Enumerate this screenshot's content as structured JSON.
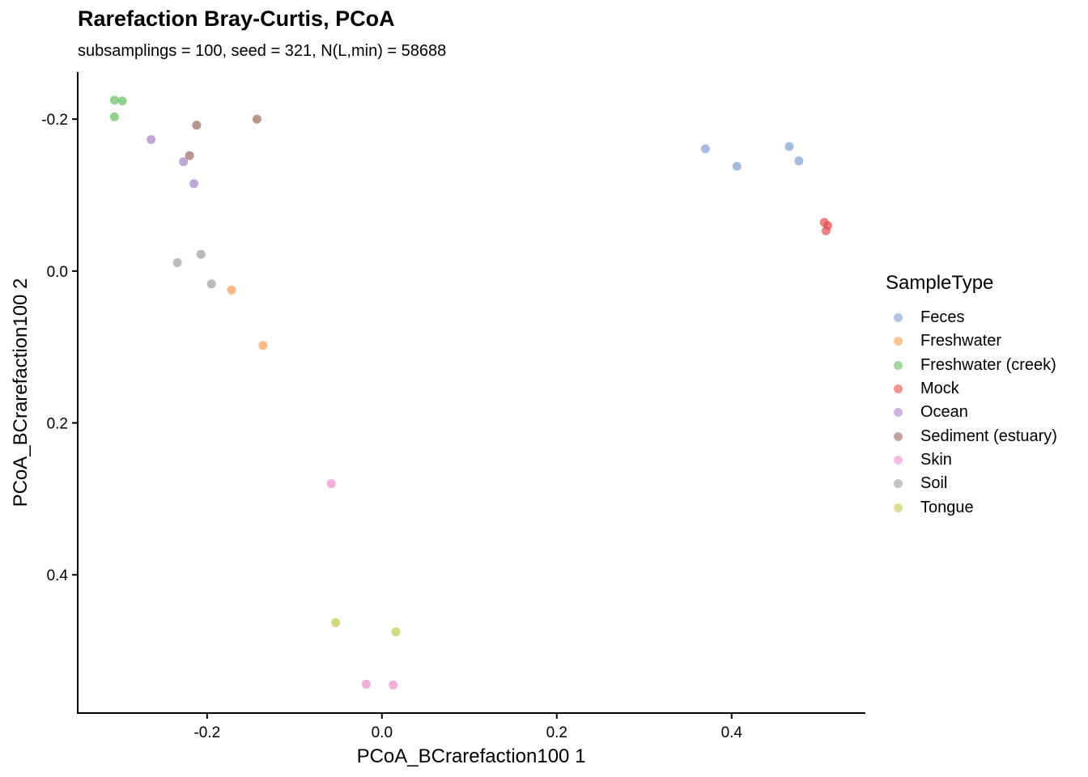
{
  "chart_data": {
    "type": "scatter",
    "title": "Rarefaction Bray-Curtis, PCoA",
    "subtitle": "subsamplings = 100, seed = 321, N(L,min) = 58688",
    "xlabel": "PCoA_BCrarefaction100 1",
    "ylabel": "PCoA_BCrarefaction100 2",
    "xlim": [
      -0.348,
      0.553
    ],
    "ylim": [
      -0.262,
      0.582
    ],
    "y_reversed": true,
    "xticks": [
      -0.2,
      0.0,
      0.2,
      0.4
    ],
    "xtick_labels": [
      "-0.2",
      "0.0",
      "0.2",
      "0.4"
    ],
    "yticks": [
      -0.2,
      0.0,
      0.2,
      0.4
    ],
    "ytick_labels": [
      "-0.2",
      "0.0",
      "0.2",
      "0.4"
    ],
    "grid": false,
    "legend_title": "SampleType",
    "legend_position": "right",
    "series": [
      {
        "name": "Feces",
        "color": "#7F9FD0",
        "points": [
          [
            0.37,
            -0.161
          ],
          [
            0.406,
            -0.138
          ],
          [
            0.466,
            -0.164
          ],
          [
            0.477,
            -0.145
          ]
        ]
      },
      {
        "name": "Freshwater",
        "color": "#F99D52",
        "points": [
          [
            -0.172,
            0.025
          ],
          [
            -0.136,
            0.098
          ]
        ]
      },
      {
        "name": "Freshwater (creek)",
        "color": "#68BE5E",
        "points": [
          [
            -0.306,
            -0.225
          ],
          [
            -0.297,
            -0.224
          ],
          [
            -0.306,
            -0.203
          ]
        ]
      },
      {
        "name": "Mock",
        "color": "#E34F4D",
        "points": [
          [
            0.506,
            -0.064
          ],
          [
            0.51,
            -0.06
          ],
          [
            0.508,
            -0.053
          ]
        ]
      },
      {
        "name": "Ocean",
        "color": "#A681C6",
        "points": [
          [
            -0.264,
            -0.173
          ],
          [
            -0.227,
            -0.144
          ],
          [
            -0.215,
            -0.115
          ]
        ]
      },
      {
        "name": "Sediment (estuary)",
        "color": "#9A6A5E",
        "points": [
          [
            -0.212,
            -0.192
          ],
          [
            -0.143,
            -0.2
          ],
          [
            -0.22,
            -0.152
          ]
        ]
      },
      {
        "name": "Skin",
        "color": "#EF8CCB",
        "points": [
          [
            -0.058,
            0.28
          ],
          [
            -0.018,
            0.544
          ],
          [
            0.013,
            0.545
          ]
        ]
      },
      {
        "name": "Soil",
        "color": "#9E9E9E",
        "points": [
          [
            -0.234,
            -0.011
          ],
          [
            -0.207,
            -0.022
          ],
          [
            -0.195,
            0.017
          ]
        ]
      },
      {
        "name": "Tongue",
        "color": "#C2C74C",
        "points": [
          [
            -0.053,
            0.463
          ],
          [
            0.016,
            0.475
          ]
        ]
      }
    ]
  }
}
